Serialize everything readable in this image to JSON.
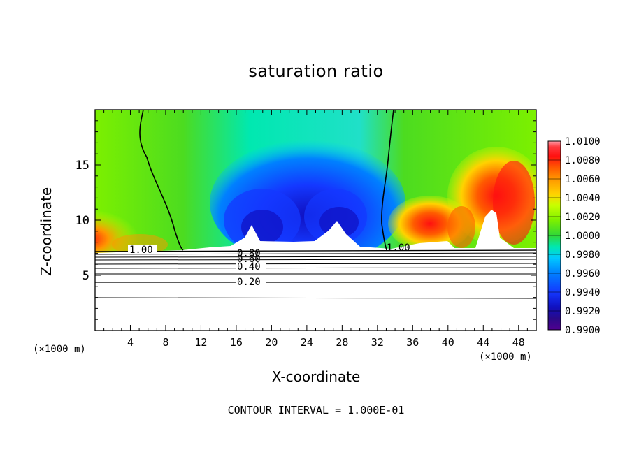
{
  "chart_data": {
    "type": "heatmap",
    "title": "saturation ratio",
    "xlabel": "X-coordinate",
    "ylabel": "Z-coordinate",
    "x_unit": "(×1000 m)",
    "x_unit_right": "(×1000 m)",
    "xlim": [
      0,
      50
    ],
    "ylim": [
      0,
      20
    ],
    "xticks": [
      4,
      8,
      12,
      16,
      20,
      24,
      28,
      32,
      36,
      40,
      44,
      48
    ],
    "yticks": [
      5,
      10,
      15
    ],
    "colorbar": {
      "range": [
        0.99,
        1.01
      ],
      "levels": [
        "1.0100",
        "1.0080",
        "1.0060",
        "1.0040",
        "1.0020",
        "1.0000",
        "0.9980",
        "0.9960",
        "0.9940",
        "0.9920",
        "0.9900"
      ],
      "colors": [
        "#ff9aa8",
        "#ff3a40",
        "#ff1010",
        "#ff5a00",
        "#ff9600",
        "#ffd200",
        "#c8ff00",
        "#7cf000",
        "#30d838",
        "#00e8b0",
        "#00c8ff",
        "#0080ff",
        "#1438ff",
        "#1010c0",
        "#2a0a88",
        "#500090"
      ]
    },
    "contour_labels": [
      "1.00",
      "1.00",
      "0.80",
      "0.60",
      "0.40",
      "0.20"
    ],
    "contour_interval_note": "CONTOUR INTERVAL = 1.000E-01"
  }
}
